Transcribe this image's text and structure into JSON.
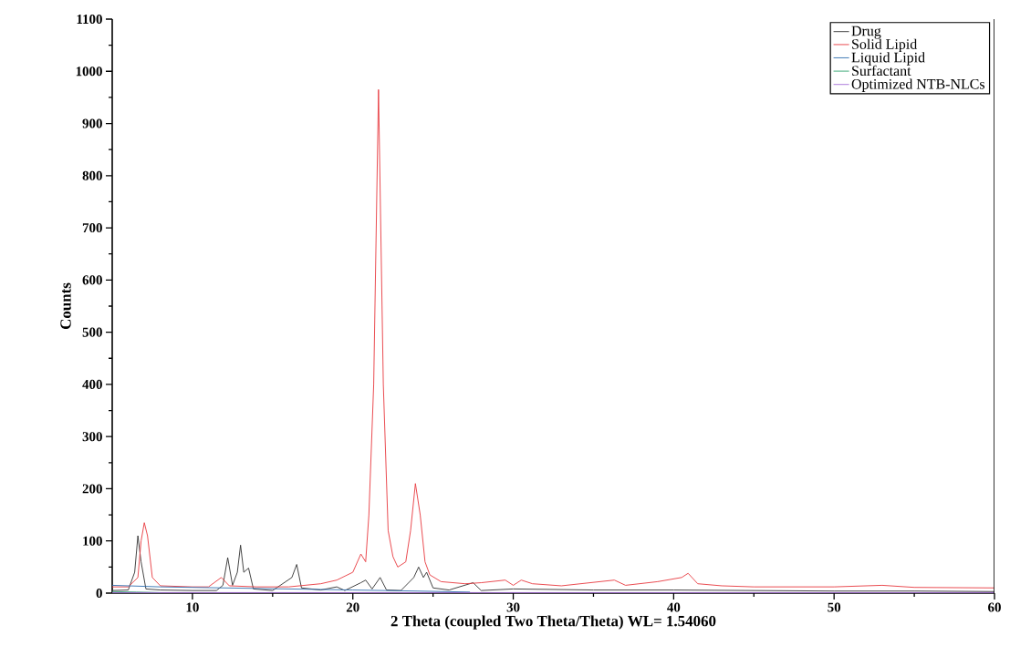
{
  "chart_data": {
    "type": "line",
    "xlabel": "2 Theta (coupled Two Theta/Theta) WL= 1.54060",
    "ylabel": "Counts",
    "xlim": [
      5,
      60
    ],
    "ylim": [
      0,
      1100
    ],
    "xticks": [
      10,
      20,
      30,
      40,
      50,
      60
    ],
    "yticks": [
      0,
      100,
      200,
      300,
      400,
      500,
      600,
      700,
      800,
      900,
      1000,
      1100
    ],
    "legend": "top right",
    "grid": false,
    "marker": "none",
    "line_style": "solid",
    "series": [
      {
        "name": "Drug",
        "color": "#303030",
        "x": [
          5,
          6,
          6.4,
          6.6,
          6.8,
          7.1,
          8,
          10,
          11.5,
          11.9,
          12.2,
          12.5,
          12.8,
          13.0,
          13.2,
          13.5,
          13.8,
          15,
          16.2,
          16.5,
          16.8,
          18,
          19,
          19.5,
          20.5,
          20.8,
          21.2,
          21.7,
          22.1,
          23,
          23.8,
          24.1,
          24.4,
          24.6,
          25,
          26,
          27.5,
          28,
          30,
          35,
          40,
          45,
          50,
          55,
          60
        ],
        "values": [
          5,
          6,
          40,
          110,
          60,
          8,
          6,
          5,
          5,
          15,
          68,
          15,
          40,
          92,
          40,
          48,
          8,
          5,
          30,
          55,
          10,
          6,
          12,
          5,
          20,
          25,
          8,
          30,
          6,
          5,
          30,
          50,
          30,
          40,
          10,
          6,
          20,
          5,
          8,
          6,
          6,
          5,
          4,
          4,
          3
        ]
      },
      {
        "name": "Solid Lipid",
        "color": "#e8383d",
        "x": [
          5,
          6,
          6.6,
          6.8,
          7.0,
          7.2,
          7.5,
          8,
          10,
          11,
          11.8,
          12.3,
          14,
          16,
          18,
          19,
          20,
          20.5,
          20.8,
          21.0,
          21.3,
          21.6,
          21.9,
          22.2,
          22.5,
          22.8,
          23.3,
          23.6,
          23.9,
          24.2,
          24.5,
          24.8,
          25.5,
          27,
          28,
          29.5,
          30,
          30.5,
          31.2,
          33,
          36.3,
          37,
          39,
          40.5,
          40.9,
          41.5,
          43,
          45,
          50,
          53,
          55,
          60
        ],
        "values": [
          12,
          12,
          30,
          100,
          135,
          110,
          30,
          14,
          12,
          12,
          30,
          14,
          12,
          12,
          18,
          25,
          40,
          75,
          60,
          150,
          400,
          965,
          400,
          120,
          70,
          50,
          60,
          120,
          210,
          150,
          60,
          35,
          22,
          18,
          20,
          25,
          15,
          25,
          18,
          14,
          25,
          15,
          22,
          30,
          38,
          18,
          14,
          12,
          12,
          15,
          11,
          10
        ]
      },
      {
        "name": "Liquid Lipid",
        "color": "#2f6fb0",
        "x": [
          5,
          8,
          12,
          16,
          20,
          24,
          27.3
        ],
        "values": [
          15,
          12,
          10,
          8,
          6,
          4,
          2
        ]
      },
      {
        "name": "Surfactant",
        "color": "#2aa36b",
        "x": [
          5,
          6.5,
          8
        ],
        "values": [
          3,
          2,
          1
        ]
      },
      {
        "name": "Optimized NTB-NLCs",
        "color": "#a46cd8",
        "x": [
          5,
          30,
          60
        ],
        "values": [
          1,
          1,
          1
        ]
      }
    ]
  }
}
